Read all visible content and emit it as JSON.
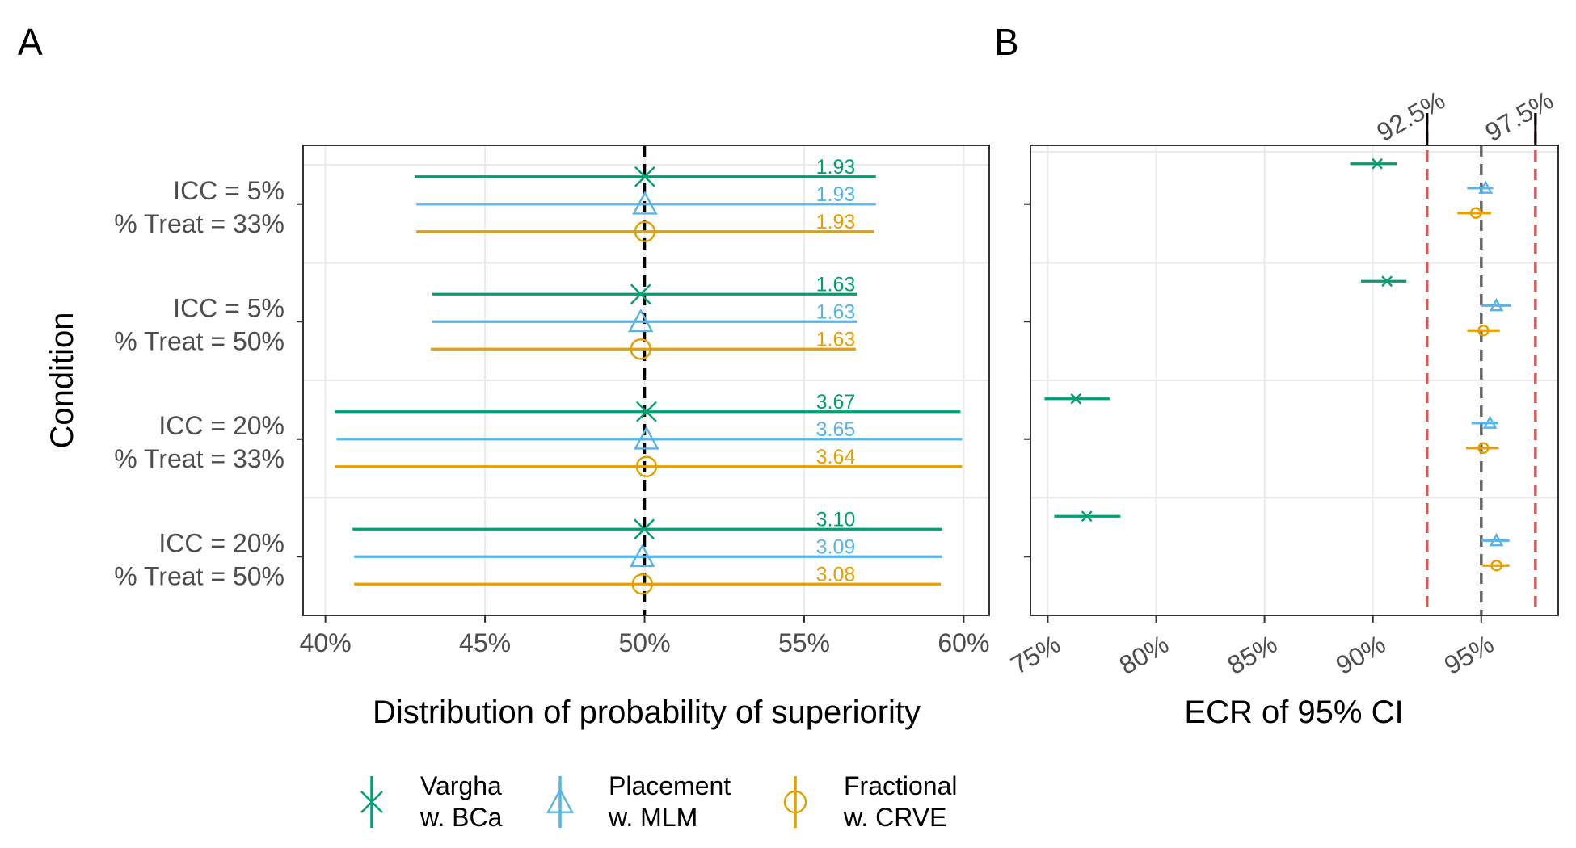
{
  "panels": {
    "a_label": "A",
    "b_label": "B"
  },
  "colors": {
    "vargha": "#009E73",
    "placement": "#56B4E9",
    "fractional": "#E69F00",
    "ref_line": "#000000",
    "target_line": "#666666",
    "bound_line": "#CD5C5C",
    "grid": "#EBEBEB"
  },
  "legend": [
    {
      "key": "vargha",
      "line1": "Vargha",
      "line2": "w. BCa",
      "shape": "x-icon"
    },
    {
      "key": "placement",
      "line1": "Placement",
      "line2": "w. MLM",
      "shape": "triangle-icon"
    },
    {
      "key": "fractional",
      "line1": "Fractional",
      "line2": "w. CRVE",
      "shape": "circle-icon"
    }
  ],
  "chart_data": [
    {
      "type": "errorbar",
      "panel": "A",
      "title": "",
      "xlabel": "Distribution of probability of superiority",
      "ylabel": "Condition",
      "xlim": [
        0.393,
        0.608
      ],
      "xticks": [
        0.4,
        0.45,
        0.5,
        0.55,
        0.6
      ],
      "xtick_labels": [
        "40%",
        "45%",
        "50%",
        "55%",
        "60%"
      ],
      "reference_line": 0.5,
      "conditions": [
        {
          "line1": "ICC = 5%",
          "line2": "% Treat = 33%"
        },
        {
          "line1": "ICC = 5%",
          "line2": "% Treat = 50%"
        },
        {
          "line1": "ICC = 20%",
          "line2": "% Treat = 33%"
        },
        {
          "line1": "ICC = 20%",
          "line2": "% Treat = 50%"
        }
      ],
      "series": [
        {
          "name": "Vargha w. BCa",
          "key": "vargha",
          "center": [
            0.5001,
            0.4988,
            0.5006,
            0.4999
          ],
          "low": [
            0.428,
            0.4335,
            0.403,
            0.4085
          ],
          "high": [
            0.5725,
            0.5665,
            0.599,
            0.5932
          ],
          "labels": [
            "1.93",
            "1.63",
            "3.67",
            "3.10"
          ]
        },
        {
          "name": "Placement w. MLM",
          "key": "placement",
          "center": [
            0.5001,
            0.4988,
            0.5006,
            0.4993
          ],
          "low": [
            0.4285,
            0.4335,
            0.4035,
            0.409
          ],
          "high": [
            0.5725,
            0.5665,
            0.5995,
            0.5932
          ],
          "labels": [
            "1.93",
            "1.63",
            "3.65",
            "3.09"
          ]
        },
        {
          "name": "Fractional w. CRVE",
          "key": "fractional",
          "center": [
            0.5001,
            0.4988,
            0.5006,
            0.4993
          ],
          "low": [
            0.4285,
            0.433,
            0.403,
            0.409
          ],
          "high": [
            0.572,
            0.5662,
            0.5995,
            0.5928
          ],
          "labels": [
            "1.93",
            "1.63",
            "3.64",
            "3.08"
          ]
        }
      ]
    },
    {
      "type": "errorbar",
      "panel": "B",
      "title": "",
      "xlabel": "ECR of 95% CI",
      "xlim": [
        0.742,
        0.9855
      ],
      "xticks": [
        0.75,
        0.8,
        0.85,
        0.9,
        0.95
      ],
      "xtick_labels": [
        "75%",
        "80%",
        "85%",
        "90%",
        "95%"
      ],
      "target_line": 0.95,
      "bound_lines": [
        0.925,
        0.975
      ],
      "bound_labels": [
        "92.5%",
        "97.5%"
      ],
      "series": [
        {
          "name": "Vargha w. BCa",
          "key": "vargha",
          "center": [
            0.902,
            0.9065,
            0.763,
            0.768
          ],
          "low": [
            0.8895,
            0.8945,
            0.7485,
            0.753
          ],
          "high": [
            0.911,
            0.9155,
            0.7785,
            0.7835
          ]
        },
        {
          "name": "Placement w. MLM",
          "key": "placement",
          "center": [
            0.952,
            0.957,
            0.954,
            0.957
          ],
          "low": [
            0.9435,
            0.95,
            0.9455,
            0.95
          ],
          "high": [
            0.9555,
            0.9635,
            0.9575,
            0.963
          ]
        },
        {
          "name": "Fractional w. CRVE",
          "key": "fractional",
          "center": [
            0.9475,
            0.951,
            0.951,
            0.957
          ],
          "low": [
            0.939,
            0.9435,
            0.943,
            0.9505
          ],
          "high": [
            0.9545,
            0.9585,
            0.958,
            0.963
          ]
        }
      ]
    }
  ]
}
